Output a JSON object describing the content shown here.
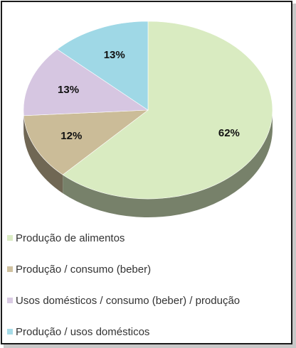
{
  "chart_data": {
    "type": "pie",
    "title": "",
    "series": [
      {
        "name": "Produção de alimentos",
        "value": 62,
        "label": "62%",
        "color": "#d9ebc1"
      },
      {
        "name": "Produção / consumo (beber)",
        "value": 12,
        "label": "12%",
        "color": "#cbbc98"
      },
      {
        "name": "Usos domésticos / consumo (beber) / produção",
        "value": 13,
        "label": "13%",
        "color": "#d6c6e1"
      },
      {
        "name": "Produção / usos domésticos",
        "value": 13,
        "label": "13%",
        "color": "#9fd8e6"
      }
    ],
    "legend_position": "bottom",
    "style": "3d"
  }
}
